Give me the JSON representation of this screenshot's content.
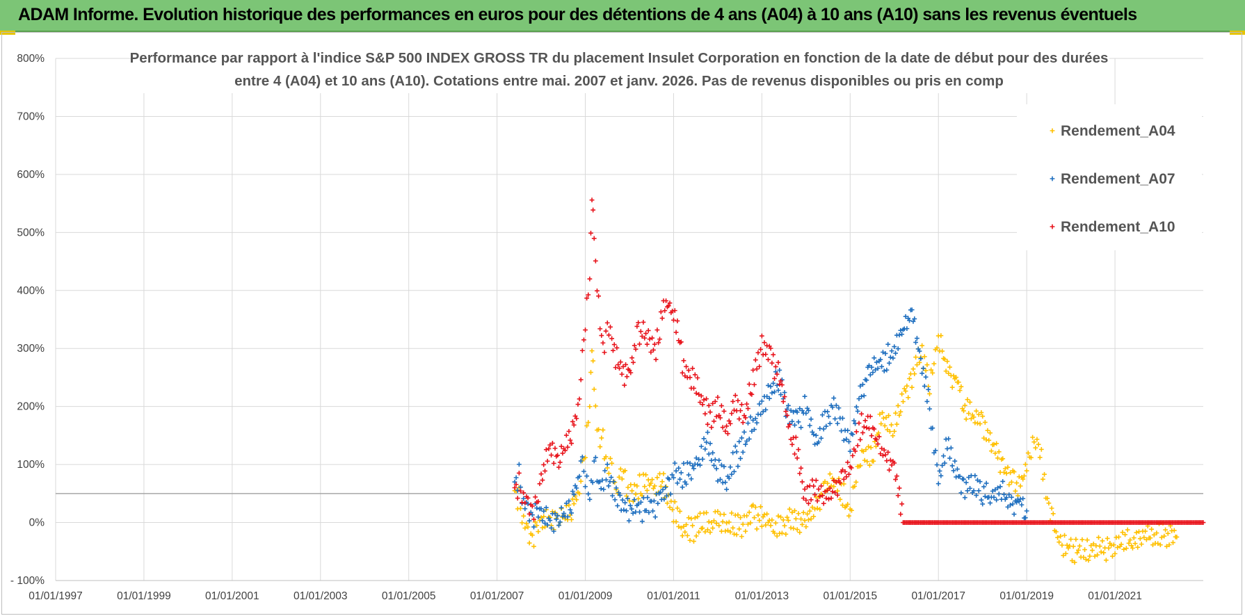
{
  "header": {
    "banner_title": "ADAM Informe. Evolution historique des performances en euros pour des détentions de 4 ans (A04) à 10 ans (A10) sans les revenus éventuels"
  },
  "colors": {
    "banner_bg": "#7cc576",
    "series_a04": "#ffc000",
    "series_a07": "#1f6fbf",
    "series_a10": "#e8141c",
    "grid": "#d9d9d9"
  },
  "chart_data": {
    "type": "scatter",
    "title_line1": "Performance par rapport à l'indice S&P 500 INDEX GROSS TR  du placement Insulet Corporation en fonction de la date de début pour des durées",
    "title_line2": "entre 4 (A04) et 10 ans (A10).  Cotations entre mai. 2007 et janv. 2026. Pas de revenus disponibles ou pris en comp",
    "xlabel": "",
    "ylabel": "",
    "xlim": [
      1997.0,
      2023.0
    ],
    "ylim": [
      -100,
      800
    ],
    "y_ticks": [
      -100,
      0,
      100,
      200,
      300,
      400,
      500,
      600,
      700,
      800
    ],
    "y_tick_labels": [
      "- 100%",
      "0%",
      "100%",
      "200%",
      "300%",
      "400%",
      "500%",
      "600%",
      "700%",
      "800%"
    ],
    "x_ticks": [
      1997,
      1999,
      2001,
      2003,
      2005,
      2007,
      2009,
      2011,
      2013,
      2015,
      2017,
      2019,
      2021
    ],
    "x_tick_labels": [
      "01/01/1997",
      "01/01/1999",
      "01/01/2001",
      "01/01/2003",
      "01/01/2005",
      "01/01/2007",
      "01/01/2009",
      "01/01/2011",
      "01/01/2013",
      "01/01/2015",
      "01/01/2017",
      "01/01/2019",
      "01/01/2021"
    ],
    "reference_line_y": 50,
    "marker": "+",
    "legend_position": "top-right",
    "series": [
      {
        "name": "Rendement_A04",
        "points": [
          [
            2007.4,
            55
          ],
          [
            2007.5,
            40
          ],
          [
            2007.6,
            10
          ],
          [
            2007.7,
            -20
          ],
          [
            2007.8,
            -30
          ],
          [
            2007.9,
            -15
          ],
          [
            2008.0,
            -5
          ],
          [
            2008.2,
            5
          ],
          [
            2008.4,
            10
          ],
          [
            2008.6,
            15
          ],
          [
            2008.8,
            40
          ],
          [
            2008.9,
            75
          ],
          [
            2009.0,
            130
          ],
          [
            2009.1,
            200
          ],
          [
            2009.15,
            300
          ],
          [
            2009.2,
            220
          ],
          [
            2009.3,
            140
          ],
          [
            2009.4,
            150
          ],
          [
            2009.5,
            80
          ],
          [
            2009.6,
            95
          ],
          [
            2009.7,
            40
          ],
          [
            2009.8,
            80
          ],
          [
            2009.9,
            75
          ],
          [
            2010.0,
            50
          ],
          [
            2010.2,
            60
          ],
          [
            2010.4,
            70
          ],
          [
            2010.6,
            60
          ],
          [
            2010.8,
            65
          ],
          [
            2011.0,
            20
          ],
          [
            2011.2,
            -10
          ],
          [
            2011.4,
            -15
          ],
          [
            2011.6,
            0
          ],
          [
            2011.8,
            -5
          ],
          [
            2012.0,
            10
          ],
          [
            2012.2,
            -5
          ],
          [
            2012.4,
            0
          ],
          [
            2012.6,
            -10
          ],
          [
            2012.8,
            10
          ],
          [
            2013.0,
            5
          ],
          [
            2013.2,
            0
          ],
          [
            2013.4,
            -10
          ],
          [
            2013.6,
            5
          ],
          [
            2013.8,
            0
          ],
          [
            2014.0,
            10
          ],
          [
            2014.2,
            30
          ],
          [
            2014.4,
            50
          ],
          [
            2014.6,
            70
          ],
          [
            2014.8,
            55
          ],
          [
            2015.0,
            20
          ],
          [
            2015.1,
            60
          ],
          [
            2015.2,
            90
          ],
          [
            2015.3,
            120
          ],
          [
            2015.5,
            110
          ],
          [
            2015.7,
            180
          ],
          [
            2015.9,
            170
          ],
          [
            2016.0,
            160
          ],
          [
            2016.2,
            220
          ],
          [
            2016.4,
            250
          ],
          [
            2016.6,
            300
          ],
          [
            2016.8,
            240
          ],
          [
            2016.9,
            270
          ],
          [
            2017.0,
            320
          ],
          [
            2017.2,
            260
          ],
          [
            2017.4,
            250
          ],
          [
            2017.6,
            200
          ],
          [
            2017.8,
            180
          ],
          [
            2018.0,
            170
          ],
          [
            2018.2,
            140
          ],
          [
            2018.4,
            100
          ],
          [
            2018.6,
            80
          ],
          [
            2018.8,
            60
          ],
          [
            2019.0,
            100
          ],
          [
            2019.1,
            130
          ],
          [
            2019.2,
            150
          ],
          [
            2019.3,
            130
          ],
          [
            2019.4,
            70
          ],
          [
            2019.5,
            30
          ],
          [
            2019.6,
            0
          ],
          [
            2019.7,
            -30
          ],
          [
            2019.8,
            -40
          ],
          [
            2020.0,
            -45
          ],
          [
            2020.2,
            -50
          ],
          [
            2020.4,
            -45
          ],
          [
            2020.6,
            -40
          ],
          [
            2020.8,
            -45
          ],
          [
            2021.0,
            -40
          ],
          [
            2021.2,
            -35
          ],
          [
            2021.4,
            -30
          ],
          [
            2021.6,
            -25
          ],
          [
            2021.8,
            -25
          ],
          [
            2022.0,
            -20
          ],
          [
            2022.2,
            -22
          ],
          [
            2022.4,
            -25
          ]
        ]
      },
      {
        "name": "Rendement_A07",
        "points": [
          [
            2007.4,
            70
          ],
          [
            2007.5,
            80
          ],
          [
            2007.6,
            40
          ],
          [
            2007.7,
            20
          ],
          [
            2007.8,
            5
          ],
          [
            2007.9,
            15
          ],
          [
            2008.0,
            10
          ],
          [
            2008.2,
            0
          ],
          [
            2008.4,
            10
          ],
          [
            2008.6,
            20
          ],
          [
            2008.8,
            60
          ],
          [
            2008.9,
            110
          ],
          [
            2009.0,
            80
          ],
          [
            2009.1,
            40
          ],
          [
            2009.2,
            110
          ],
          [
            2009.3,
            60
          ],
          [
            2009.5,
            80
          ],
          [
            2009.7,
            50
          ],
          [
            2009.9,
            20
          ],
          [
            2010.2,
            25
          ],
          [
            2010.5,
            20
          ],
          [
            2010.7,
            40
          ],
          [
            2010.9,
            60
          ],
          [
            2011.0,
            90
          ],
          [
            2011.2,
            80
          ],
          [
            2011.4,
            90
          ],
          [
            2011.6,
            110
          ],
          [
            2011.8,
            140
          ],
          [
            2012.0,
            90
          ],
          [
            2012.2,
            70
          ],
          [
            2012.4,
            110
          ],
          [
            2012.6,
            140
          ],
          [
            2012.8,
            170
          ],
          [
            2013.0,
            200
          ],
          [
            2013.2,
            230
          ],
          [
            2013.4,
            250
          ],
          [
            2013.6,
            180
          ],
          [
            2013.8,
            170
          ],
          [
            2014.0,
            200
          ],
          [
            2014.2,
            140
          ],
          [
            2014.4,
            170
          ],
          [
            2014.6,
            200
          ],
          [
            2014.8,
            170
          ],
          [
            2015.0,
            140
          ],
          [
            2015.2,
            220
          ],
          [
            2015.4,
            250
          ],
          [
            2015.6,
            270
          ],
          [
            2015.8,
            280
          ],
          [
            2016.0,
            300
          ],
          [
            2016.2,
            330
          ],
          [
            2016.4,
            360
          ],
          [
            2016.6,
            280
          ],
          [
            2016.8,
            200
          ],
          [
            2016.9,
            130
          ],
          [
            2017.0,
            80
          ],
          [
            2017.2,
            130
          ],
          [
            2017.4,
            90
          ],
          [
            2017.6,
            60
          ],
          [
            2017.8,
            70
          ],
          [
            2018.0,
            50
          ],
          [
            2018.2,
            40
          ],
          [
            2018.4,
            60
          ],
          [
            2018.6,
            30
          ],
          [
            2018.8,
            40
          ],
          [
            2019.0,
            20
          ]
        ]
      },
      {
        "name": "Rendement_A10",
        "points": [
          [
            2007.4,
            60
          ],
          [
            2007.5,
            65
          ],
          [
            2007.6,
            50
          ],
          [
            2007.7,
            30
          ],
          [
            2007.8,
            20
          ],
          [
            2007.9,
            25
          ],
          [
            2008.0,
            70
          ],
          [
            2008.2,
            130
          ],
          [
            2008.4,
            110
          ],
          [
            2008.6,
            140
          ],
          [
            2008.8,
            180
          ],
          [
            2008.9,
            250
          ],
          [
            2009.0,
            350
          ],
          [
            2009.1,
            420
          ],
          [
            2009.15,
            560
          ],
          [
            2009.2,
            480
          ],
          [
            2009.3,
            370
          ],
          [
            2009.4,
            300
          ],
          [
            2009.5,
            330
          ],
          [
            2009.6,
            310
          ],
          [
            2009.8,
            260
          ],
          [
            2010.0,
            250
          ],
          [
            2010.2,
            330
          ],
          [
            2010.4,
            320
          ],
          [
            2010.6,
            300
          ],
          [
            2010.8,
            380
          ],
          [
            2011.0,
            360
          ],
          [
            2011.2,
            280
          ],
          [
            2011.4,
            250
          ],
          [
            2011.6,
            220
          ],
          [
            2011.8,
            180
          ],
          [
            2012.0,
            200
          ],
          [
            2012.2,
            160
          ],
          [
            2012.4,
            210
          ],
          [
            2012.6,
            180
          ],
          [
            2012.8,
            250
          ],
          [
            2013.0,
            300
          ],
          [
            2013.2,
            280
          ],
          [
            2013.4,
            250
          ],
          [
            2013.6,
            170
          ],
          [
            2013.8,
            120
          ],
          [
            2014.0,
            40
          ],
          [
            2014.2,
            60
          ],
          [
            2014.4,
            50
          ],
          [
            2014.6,
            60
          ],
          [
            2014.8,
            70
          ],
          [
            2015.0,
            90
          ],
          [
            2015.2,
            160
          ],
          [
            2015.4,
            180
          ],
          [
            2015.6,
            140
          ],
          [
            2015.8,
            110
          ],
          [
            2016.0,
            100
          ],
          [
            2016.2,
            0
          ],
          [
            2016.6,
            0
          ],
          [
            2017.0,
            0
          ],
          [
            2017.5,
            0
          ],
          [
            2018.0,
            0
          ],
          [
            2018.5,
            0
          ],
          [
            2019.0,
            0
          ],
          [
            2019.5,
            0
          ],
          [
            2020.0,
            0
          ],
          [
            2020.5,
            0
          ],
          [
            2021.0,
            0
          ],
          [
            2021.5,
            0
          ],
          [
            2022.0,
            0
          ],
          [
            2022.5,
            0
          ],
          [
            2023.0,
            0
          ]
        ]
      }
    ]
  }
}
